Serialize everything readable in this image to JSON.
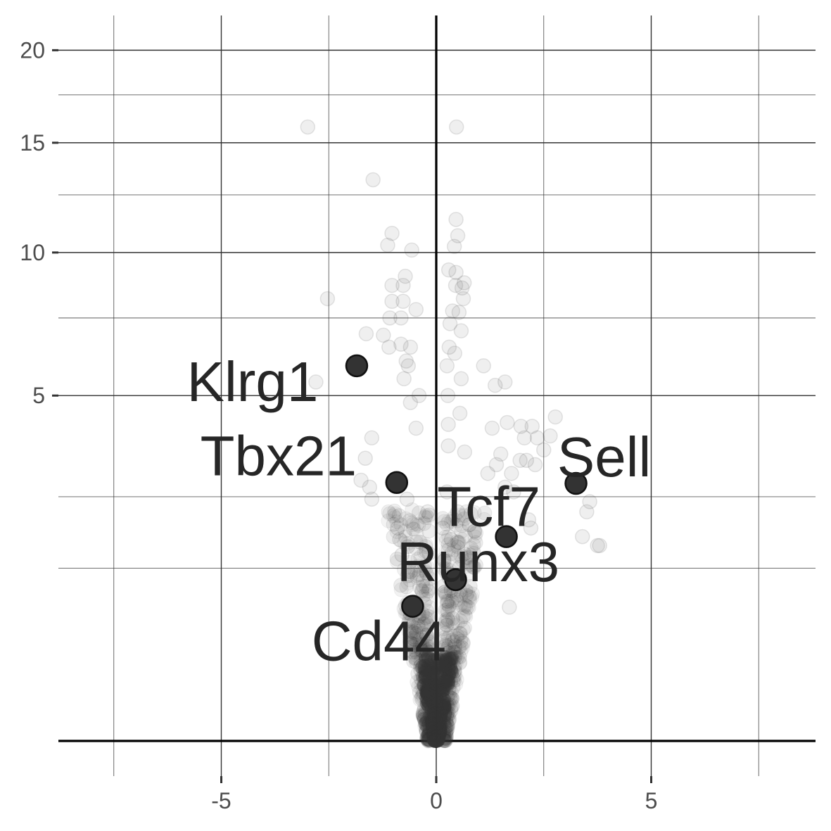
{
  "chart_data": {
    "type": "scatter",
    "title": "",
    "xlabel": "",
    "ylabel": "",
    "xlim": [
      -8.8,
      8.8
    ],
    "y_scale": "sqrt",
    "ylim": [
      0,
      21
    ],
    "x_ticks": [
      -5,
      0,
      5
    ],
    "x_tick_labels": [
      "-5",
      "0",
      "5"
    ],
    "y_ticks": [
      5,
      10,
      15,
      20
    ],
    "y_tick_labels": [
      "5",
      "10",
      "15",
      "20"
    ],
    "grid": true,
    "legend": "none",
    "colors": {
      "point": "#333333",
      "text": "#262626",
      "axis_text": "#4d4d4d",
      "grid": "#333333"
    },
    "highlighted": [
      {
        "label": "Klrg1",
        "x": -1.85,
        "y": 5.9
      },
      {
        "label": "Tbx21",
        "x": -0.92,
        "y": 2.8
      },
      {
        "label": "Sell",
        "x": 3.25,
        "y": 2.78
      },
      {
        "label": "Tcf7",
        "x": 1.63,
        "y": 1.75
      },
      {
        "label": "Runx3",
        "x": 0.45,
        "y": 1.09
      },
      {
        "label": "Cd44",
        "x": -0.55,
        "y": 0.76
      }
    ],
    "background_points": [
      [
        -2.99,
        15.8
      ],
      [
        0.47,
        15.8
      ],
      [
        -1.47,
        13.2
      ],
      [
        0.46,
        11.4
      ],
      [
        0.5,
        10.7
      ],
      [
        -1.03,
        10.8
      ],
      [
        -1.13,
        10.3
      ],
      [
        0.42,
        10.25
      ],
      [
        -0.57,
        10.1
      ],
      [
        0.29,
        9.3
      ],
      [
        0.46,
        9.2
      ],
      [
        0.65,
        8.8
      ],
      [
        -0.72,
        9.05
      ],
      [
        -1.03,
        8.7
      ],
      [
        -0.77,
        8.7
      ],
      [
        0.45,
        8.7
      ],
      [
        0.6,
        8.6
      ],
      [
        -2.53,
        8.2
      ],
      [
        0.63,
        8.2
      ],
      [
        -1.03,
        8.1
      ],
      [
        -0.77,
        8.1
      ],
      [
        -0.47,
        7.8
      ],
      [
        0.38,
        7.75
      ],
      [
        0.53,
        7.7
      ],
      [
        -1.08,
        7.5
      ],
      [
        -0.82,
        7.5
      ],
      [
        0.32,
        7.3
      ],
      [
        -1.63,
        6.95
      ],
      [
        -1.23,
        6.9
      ],
      [
        0.58,
        7.05
      ],
      [
        -1.1,
        6.5
      ],
      [
        -0.82,
        6.6
      ],
      [
        -0.6,
        6.5
      ],
      [
        0.3,
        6.5
      ],
      [
        0.43,
        6.3
      ],
      [
        1.1,
        5.9
      ],
      [
        -0.7,
        6.05
      ],
      [
        -0.65,
        5.9
      ],
      [
        0.25,
        5.9
      ],
      [
        -2.8,
        5.4
      ],
      [
        0.58,
        5.5
      ],
      [
        1.6,
        5.4
      ],
      [
        -0.75,
        5.5
      ],
      [
        1.37,
        5.3
      ],
      [
        -0.4,
        5.0
      ],
      [
        0.27,
        5.0
      ],
      [
        -0.6,
        4.8
      ],
      [
        0.55,
        4.5
      ],
      [
        2.77,
        4.4
      ],
      [
        1.65,
        4.25
      ],
      [
        1.97,
        4.15
      ],
      [
        2.23,
        4.15
      ],
      [
        -0.47,
        4.1
      ],
      [
        0.28,
        4.2
      ],
      [
        1.3,
        4.1
      ],
      [
        2.65,
        3.9
      ],
      [
        2.05,
        3.85
      ],
      [
        2.35,
        3.85
      ],
      [
        -1.5,
        3.85
      ],
      [
        -1.65,
        3.35
      ],
      [
        0.28,
        3.65
      ],
      [
        2.5,
        3.55
      ],
      [
        1.5,
        3.45
      ],
      [
        1.95,
        3.3
      ],
      [
        2.1,
        3.3
      ],
      [
        1.4,
        3.2
      ],
      [
        2.3,
        3.2
      ],
      [
        0.66,
        3.5
      ],
      [
        1.2,
        3.0
      ],
      [
        1.75,
        3.0
      ],
      [
        -1.75,
        2.85
      ],
      [
        1.6,
        2.7
      ],
      [
        -1.55,
        2.7
      ],
      [
        1.8,
        2.6
      ],
      [
        0.25,
        2.6
      ],
      [
        3.57,
        2.4
      ],
      [
        3.5,
        2.2
      ],
      [
        -1.5,
        2.45
      ],
      [
        -0.68,
        2.45
      ],
      [
        0.5,
        2.2
      ],
      [
        2.15,
        2.05
      ],
      [
        2.2,
        1.9
      ],
      [
        3.4,
        1.75
      ],
      [
        3.75,
        1.6
      ],
      [
        3.8,
        1.6
      ],
      [
        0.35,
        1.7
      ],
      [
        -0.85,
        1.7
      ],
      [
        0.15,
        1.9
      ],
      [
        1.7,
        0.75
      ],
      [
        -0.6,
        1.2
      ],
      [
        -0.8,
        1.45
      ],
      [
        -0.9,
        1.9
      ],
      [
        -0.2,
        2.2
      ]
    ]
  }
}
